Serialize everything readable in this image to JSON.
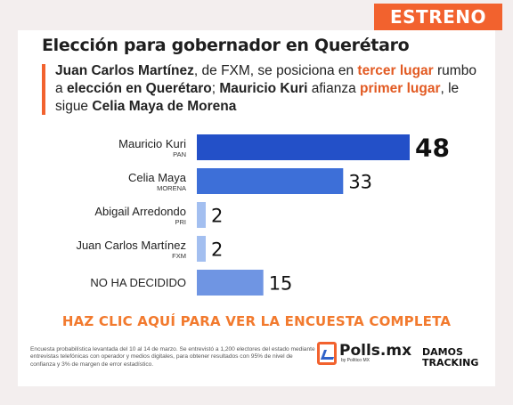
{
  "badge": {
    "label": "ESTRENO"
  },
  "header": {
    "title": "Elección para gobernador en Querétaro"
  },
  "subtitle": {
    "p1": "Juan Carlos Martínez",
    "p2": ", de FXM, se posiciona en ",
    "p3": "tercer lugar",
    "p4": " rumbo a ",
    "p5": "elección en Querétaro",
    "p6": "; ",
    "p7": "Mauricio Kuri",
    "p8": " afianza ",
    "p9": "primer lugar",
    "p10": ", le sigue ",
    "p11": "Celia Maya de Morena"
  },
  "chart_data": {
    "type": "bar",
    "orientation": "horizontal",
    "categories": [
      "Mauricio Kuri",
      "Celia Maya",
      "Abigail Arredondo",
      "Juan Carlos Martínez",
      "NO HA DECIDIDO"
    ],
    "parties": [
      "PAN",
      "MORENA",
      "PRI",
      "FXM",
      ""
    ],
    "values": [
      48,
      33,
      2,
      2,
      15
    ],
    "colors": [
      "#2350c8",
      "#3d6fd8",
      "#a3bff0",
      "#a3bff0",
      "#6f95e3"
    ],
    "xlim": [
      0,
      48
    ],
    "grid": false,
    "legend": "none"
  },
  "cta": {
    "label": "HAZ CLIC AQUÍ PARA VER LA ENCUESTA COMPLETA"
  },
  "footnote": {
    "text": "Encuesta probabilística levantada del 10 al 14 de marzo. Se entrevistó a 1,200 electores del estado mediante entrevistas telefónicas con operador y medios digitales, para obtener resultados con 95% de nivel de confianza y 3% de margen de error estadístico."
  },
  "logos": {
    "polls_name": "Polls.mx",
    "polls_by": "by Político MX",
    "damos_l1": "DAMOS",
    "damos_l2": "TRACKING"
  },
  "colors": {
    "accent": "#f2622e",
    "cta": "#f27a2e"
  }
}
